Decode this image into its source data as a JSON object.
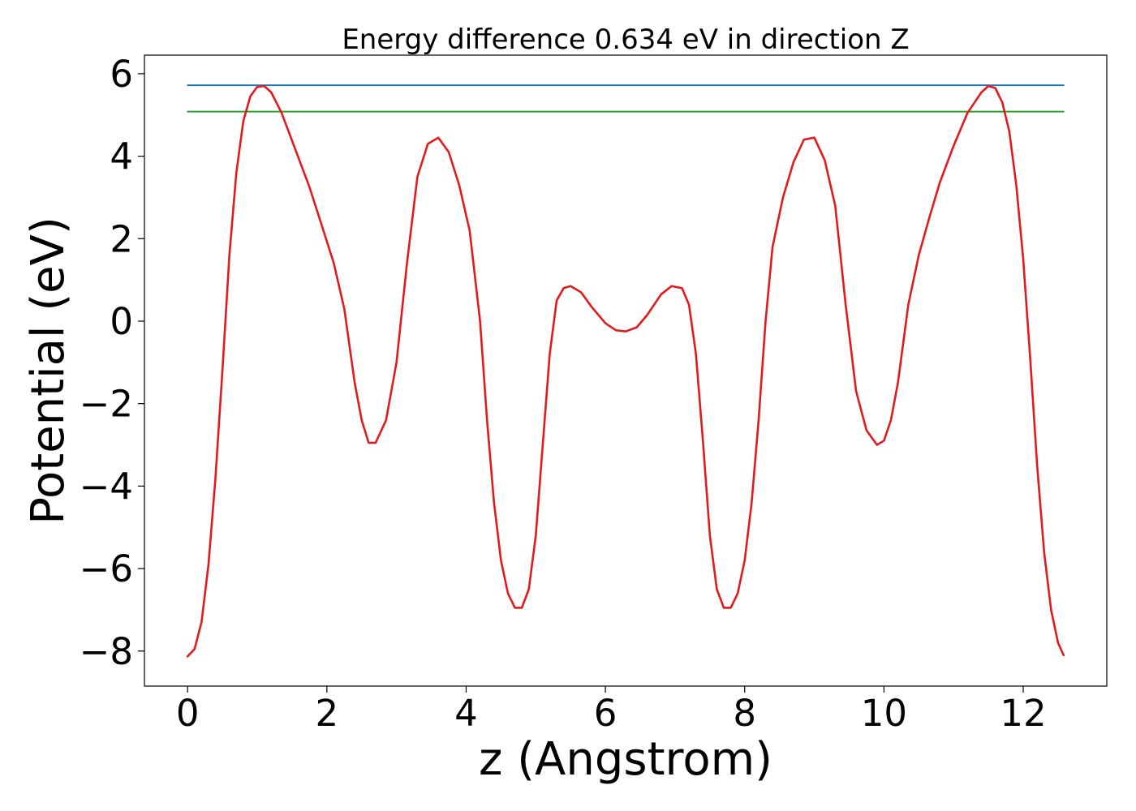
{
  "chart_data": {
    "type": "line",
    "title": "Energy difference 0.634 eV in direction Z",
    "xlabel": "z (Angstrom)",
    "ylabel": "Potential (eV)",
    "xlim": [
      -0.62,
      13.2
    ],
    "ylim": [
      -8.85,
      6.45
    ],
    "xticks": [
      0,
      2,
      4,
      6,
      8,
      10,
      12
    ],
    "xtick_labels": [
      "0",
      "2",
      "4",
      "6",
      "8",
      "10",
      "12"
    ],
    "yticks": [
      -8,
      -6,
      -4,
      -2,
      0,
      2,
      4,
      6
    ],
    "ytick_labels": [
      "−8",
      "−6",
      "−4",
      "−2",
      "0",
      "2",
      "4",
      "6"
    ],
    "grid": false,
    "series": [
      {
        "color": "#1f77b4",
        "x": [
          0,
          12.58
        ],
        "y": [
          5.72,
          5.72
        ]
      },
      {
        "color": "#2ca02c",
        "x": [
          0,
          12.58
        ],
        "y": [
          5.08,
          5.08
        ]
      },
      {
        "color": "#e31a1c",
        "x": [
          0.0,
          0.1,
          0.2,
          0.3,
          0.4,
          0.5,
          0.6,
          0.7,
          0.8,
          0.9,
          1.0,
          1.1,
          1.2,
          1.35,
          1.55,
          1.75,
          1.95,
          2.1,
          2.25,
          2.4,
          2.5,
          2.6,
          2.7,
          2.85,
          3.0,
          3.15,
          3.3,
          3.45,
          3.6,
          3.75,
          3.9,
          4.05,
          4.2,
          4.3,
          4.4,
          4.5,
          4.6,
          4.7,
          4.8,
          4.9,
          5.0,
          5.1,
          5.2,
          5.3,
          5.4,
          5.5,
          5.65,
          5.8,
          6.0,
          6.15,
          6.29,
          6.45,
          6.6,
          6.8,
          6.95,
          7.1,
          7.2,
          7.3,
          7.4,
          7.5,
          7.6,
          7.7,
          7.8,
          7.9,
          8.0,
          8.1,
          8.2,
          8.3,
          8.4,
          8.55,
          8.7,
          8.85,
          9.0,
          9.15,
          9.3,
          9.45,
          9.6,
          9.75,
          9.9,
          10.0,
          10.1,
          10.2,
          10.35,
          10.5,
          10.65,
          10.8,
          11.0,
          11.2,
          11.4,
          11.5,
          11.6,
          11.7,
          11.8,
          11.9,
          12.0,
          12.1,
          12.2,
          12.3,
          12.4,
          12.5,
          12.58
        ],
        "y": [
          -8.13,
          -7.95,
          -7.3,
          -5.9,
          -3.8,
          -1.2,
          1.6,
          3.6,
          4.85,
          5.45,
          5.68,
          5.7,
          5.55,
          5.05,
          4.15,
          3.25,
          2.2,
          1.4,
          0.3,
          -1.5,
          -2.4,
          -2.95,
          -2.95,
          -2.4,
          -1.0,
          1.4,
          3.5,
          4.3,
          4.45,
          4.1,
          3.3,
          2.2,
          0.0,
          -2.4,
          -4.4,
          -5.8,
          -6.6,
          -6.95,
          -6.95,
          -6.5,
          -5.2,
          -3.0,
          -0.8,
          0.5,
          0.8,
          0.85,
          0.7,
          0.35,
          -0.05,
          -0.22,
          -0.25,
          -0.15,
          0.15,
          0.65,
          0.85,
          0.8,
          0.4,
          -0.8,
          -2.9,
          -5.2,
          -6.5,
          -6.95,
          -6.95,
          -6.6,
          -5.8,
          -4.4,
          -2.4,
          0.0,
          1.8,
          3.0,
          3.85,
          4.4,
          4.45,
          3.9,
          2.8,
          0.4,
          -1.7,
          -2.65,
          -3.0,
          -2.9,
          -2.4,
          -1.5,
          0.4,
          1.6,
          2.5,
          3.35,
          4.25,
          5.05,
          5.55,
          5.7,
          5.65,
          5.3,
          4.6,
          3.3,
          1.5,
          -0.9,
          -3.5,
          -5.6,
          -7.0,
          -7.8,
          -8.1
        ]
      }
    ]
  }
}
